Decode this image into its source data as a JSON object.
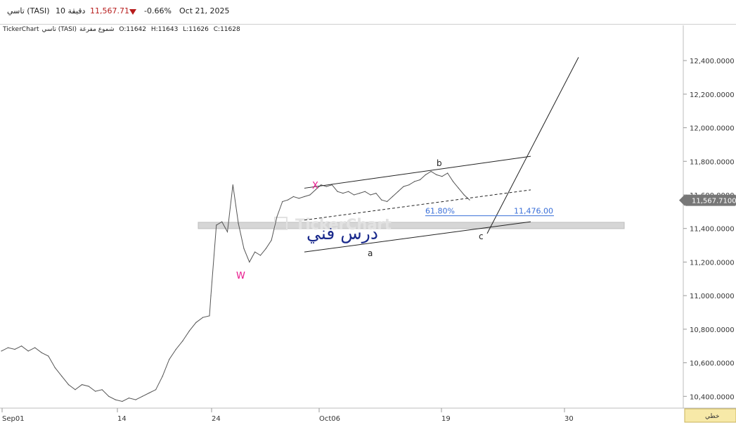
{
  "header": {
    "symbol": "تاسي (TASI)",
    "interval": "10 دقيقة",
    "last_price": "11,567.71",
    "change_pct": "-0.66%",
    "date": "Oct 21, 2025",
    "down_color": "#b71c1c"
  },
  "info_bar": {
    "source": "TickerChart",
    "name": "تاسي (TASI)",
    "chart_style": "شموع مفرغة",
    "open": "O:11642",
    "high": "H:11643",
    "low": "L:11626",
    "close": "C:11628"
  },
  "watermark": {
    "logo": "TickerChart",
    "arabic_text": "درس فني"
  },
  "price_tag": "11,567.7100",
  "chart_type_button": "خطي",
  "chart_data": {
    "type": "line",
    "x_tick_labels": [
      "Sep01",
      "14",
      "24",
      "Oct06",
      "19",
      "30"
    ],
    "y_ticks": [
      "10,400.0000",
      "10,600.0000",
      "10,800.0000",
      "11,000.0000",
      "11,200.0000",
      "11,400.0000",
      "11,600.0000",
      "11,800.0000",
      "12,000.0000",
      "12,200.0000",
      "12,400.0000"
    ],
    "ylim": [
      10330,
      12610
    ],
    "series": [
      {
        "values": [
          10670,
          10690,
          10680,
          10700,
          10670,
          10690,
          10660,
          10640,
          10570,
          10520,
          10470,
          10440,
          10470,
          10460,
          10430,
          10440,
          10400,
          10380,
          10370,
          10390,
          10380,
          10400,
          10420,
          10440,
          10520,
          10620,
          10680,
          10730,
          10790,
          10840,
          10870,
          10880,
          11000,
          11420,
          11440,
          11380,
          11660,
          11430,
          11280,
          11200,
          11260,
          11240,
          11280,
          11330,
          11470,
          11560,
          11570,
          11590,
          11580,
          11590,
          11600,
          11630,
          11660,
          11650,
          11660,
          11620,
          11610,
          11620,
          11600,
          11610,
          11620,
          11600,
          11610,
          11570,
          11560,
          11590,
          11620,
          11650,
          11660,
          11680,
          11690,
          11720,
          11740,
          11720,
          11710,
          11730,
          11680,
          11640,
          11600,
          11570
        ]
      }
    ],
    "wave_labels": [
      "W",
      "X",
      "a",
      "b",
      "c"
    ],
    "fib_label": "61.80%",
    "fib_value": "11,476.00",
    "fib_level": 11476,
    "zone_price": 11420,
    "colors": {
      "price_line": "#555555",
      "wave_w_x": "#e8178c",
      "fib": "#3a6fd8",
      "channel": "#222222",
      "zone": "#d6d6d6"
    }
  }
}
